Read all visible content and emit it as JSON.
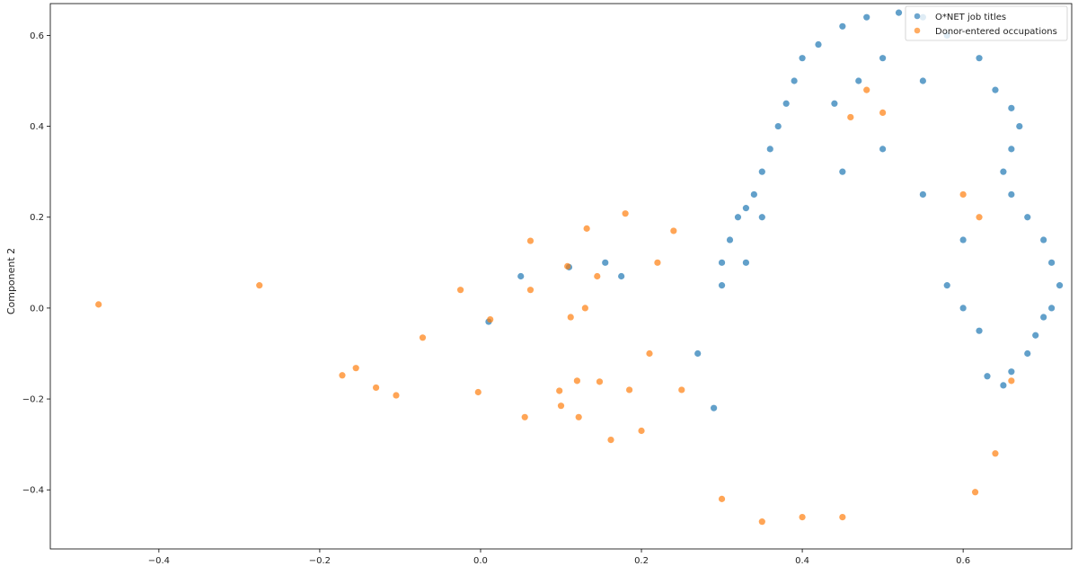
{
  "chart_data": {
    "type": "scatter",
    "title": "",
    "xlabel": "",
    "ylabel": "Component 2",
    "xlim": [
      -0.535,
      0.735
    ],
    "ylim": [
      -0.53,
      0.67
    ],
    "xticks": [
      -0.4,
      -0.2,
      0.0,
      0.2,
      0.4,
      0.6
    ],
    "xtick_labels": [
      "−0.4",
      "−0.2",
      "0.0",
      "0.2",
      "0.4",
      "0.6"
    ],
    "yticks": [
      -0.4,
      -0.2,
      0.0,
      0.2,
      0.4,
      0.6
    ],
    "ytick_labels": [
      "−0.4",
      "−0.2",
      "0.0",
      "0.2",
      "0.4",
      "0.6"
    ],
    "grid": false,
    "legend_position": "top-right",
    "series": [
      {
        "name": "O*NET job titles",
        "color": "#1f77b4",
        "points": [
          [
            0.45,
            0.62
          ],
          [
            0.48,
            0.64
          ],
          [
            0.52,
            0.65
          ],
          [
            0.55,
            0.64
          ],
          [
            0.58,
            0.6
          ],
          [
            0.42,
            0.58
          ],
          [
            0.4,
            0.55
          ],
          [
            0.62,
            0.55
          ],
          [
            0.39,
            0.5
          ],
          [
            0.64,
            0.48
          ],
          [
            0.38,
            0.45
          ],
          [
            0.66,
            0.44
          ],
          [
            0.37,
            0.4
          ],
          [
            0.67,
            0.4
          ],
          [
            0.36,
            0.35
          ],
          [
            0.66,
            0.35
          ],
          [
            0.35,
            0.3
          ],
          [
            0.65,
            0.3
          ],
          [
            0.34,
            0.25
          ],
          [
            0.66,
            0.25
          ],
          [
            0.33,
            0.22
          ],
          [
            0.68,
            0.2
          ],
          [
            0.32,
            0.2
          ],
          [
            0.7,
            0.15
          ],
          [
            0.31,
            0.15
          ],
          [
            0.71,
            0.1
          ],
          [
            0.3,
            0.1
          ],
          [
            0.72,
            0.05
          ],
          [
            0.71,
            0.0
          ],
          [
            0.7,
            -0.02
          ],
          [
            0.69,
            -0.06
          ],
          [
            0.68,
            -0.1
          ],
          [
            0.66,
            -0.14
          ],
          [
            0.65,
            -0.17
          ],
          [
            0.63,
            -0.15
          ],
          [
            0.45,
            0.3
          ],
          [
            0.5,
            0.35
          ],
          [
            0.55,
            0.25
          ],
          [
            0.6,
            0.15
          ],
          [
            0.58,
            0.05
          ],
          [
            0.62,
            -0.05
          ],
          [
            0.6,
            0.0
          ],
          [
            0.55,
            0.5
          ],
          [
            0.5,
            0.55
          ],
          [
            0.47,
            0.5
          ],
          [
            0.44,
            0.45
          ],
          [
            0.05,
            0.07
          ],
          [
            0.11,
            0.09
          ],
          [
            0.155,
            0.1
          ],
          [
            0.175,
            0.07
          ],
          [
            0.01,
            -0.03
          ],
          [
            0.3,
            0.05
          ],
          [
            0.29,
            -0.22
          ],
          [
            0.27,
            -0.1
          ],
          [
            0.35,
            0.2
          ],
          [
            0.33,
            0.1
          ]
        ]
      },
      {
        "name": "Donor-entered occupations",
        "color": "#ff7f0e",
        "points": [
          [
            -0.475,
            0.008
          ],
          [
            -0.275,
            0.05
          ],
          [
            -0.172,
            -0.148
          ],
          [
            -0.155,
            -0.132
          ],
          [
            -0.13,
            -0.175
          ],
          [
            -0.105,
            -0.192
          ],
          [
            -0.072,
            -0.065
          ],
          [
            -0.025,
            0.04
          ],
          [
            -0.003,
            -0.185
          ],
          [
            0.012,
            -0.025
          ],
          [
            0.055,
            -0.24
          ],
          [
            0.062,
            0.04
          ],
          [
            0.062,
            0.148
          ],
          [
            0.098,
            -0.182
          ],
          [
            0.1,
            -0.215
          ],
          [
            0.108,
            0.092
          ],
          [
            0.112,
            -0.02
          ],
          [
            0.122,
            -0.24
          ],
          [
            0.12,
            -0.16
          ],
          [
            0.13,
            0.0
          ],
          [
            0.132,
            0.175
          ],
          [
            0.148,
            -0.162
          ],
          [
            0.145,
            0.07
          ],
          [
            0.162,
            -0.29
          ],
          [
            0.18,
            0.208
          ],
          [
            0.185,
            -0.18
          ],
          [
            0.2,
            -0.27
          ],
          [
            0.21,
            -0.1
          ],
          [
            0.22,
            0.1
          ],
          [
            0.24,
            0.17
          ],
          [
            0.25,
            -0.18
          ],
          [
            0.3,
            -0.42
          ],
          [
            0.35,
            -0.47
          ],
          [
            0.4,
            -0.46
          ],
          [
            0.45,
            -0.46
          ],
          [
            0.48,
            0.48
          ],
          [
            0.5,
            0.43
          ],
          [
            0.46,
            0.42
          ],
          [
            0.615,
            -0.405
          ],
          [
            0.64,
            -0.32
          ],
          [
            0.6,
            0.25
          ],
          [
            0.62,
            0.2
          ],
          [
            0.66,
            -0.16
          ]
        ]
      }
    ]
  }
}
